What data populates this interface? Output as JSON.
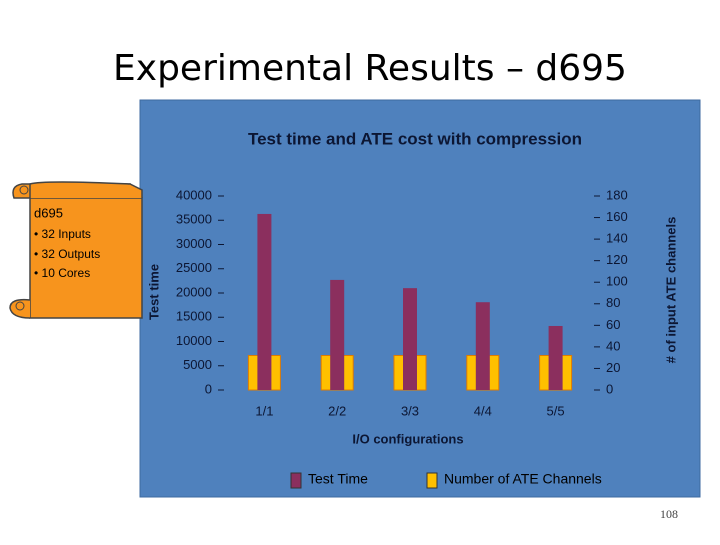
{
  "title": "Experimental Results – d695",
  "callout": {
    "heading": "d695",
    "items": [
      "• 32 Inputs",
      "• 32 Outputs",
      "• 10 Cores"
    ]
  },
  "page_number": "108",
  "chart_data": {
    "type": "bar",
    "title": "Test time and ATE cost with compression",
    "x_label": "I/O configurations",
    "y_label": "Test time",
    "y2_label": "# of input ATE channels",
    "categories": [
      "1/1",
      "2/2",
      "3/3",
      "4/4",
      "5/5"
    ],
    "series": [
      {
        "name": "Test Time",
        "color": "#8b2f5e",
        "values": [
          36300,
          22700,
          21000,
          18100,
          13200
        ]
      },
      {
        "name": "Number of ATE Channels",
        "color": "#ffc000",
        "axis": "y2",
        "values": [
          32,
          32,
          32,
          32,
          32
        ]
      }
    ],
    "ylim": [
      0,
      40000
    ],
    "yticks": [
      0,
      5000,
      10000,
      15000,
      20000,
      25000,
      30000,
      35000,
      40000
    ],
    "y2lim": [
      0,
      180
    ],
    "y2ticks": [
      0,
      20,
      40,
      60,
      80,
      100,
      120,
      140,
      160,
      180
    ],
    "grid": false,
    "legend": "bottom"
  }
}
